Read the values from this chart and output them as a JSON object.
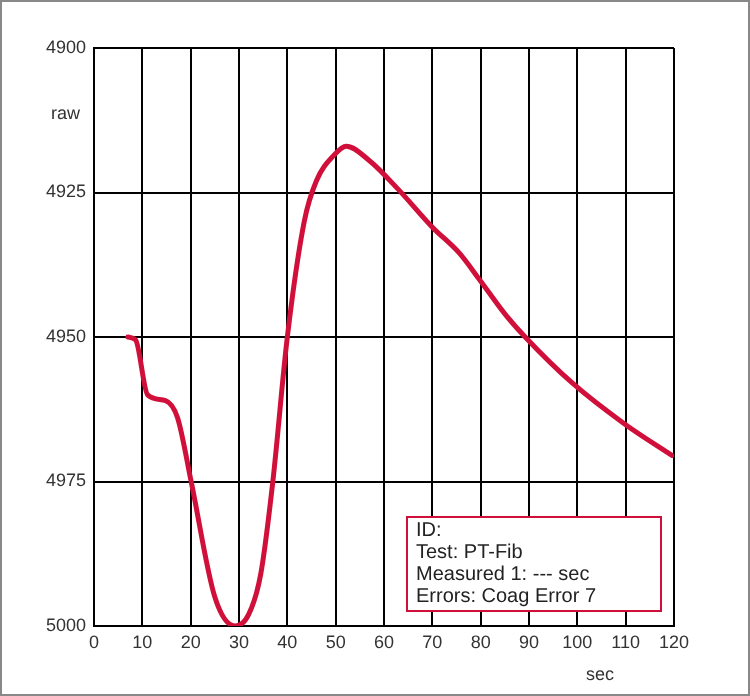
{
  "chart_data": {
    "type": "line",
    "xlabel": "sec",
    "ylabel": "raw",
    "series": [
      {
        "color": "#d0103a",
        "x": [
          7,
          8.6,
          11.1,
          14.8,
          17.3,
          20.1,
          25,
          29.2,
          32,
          34.5,
          37,
          40,
          43.5,
          46,
          49.7,
          52.2,
          57,
          63,
          70,
          75.6,
          79.7,
          85,
          89.2,
          99,
          109.7,
          119.6
        ],
        "values": [
          4950,
          4950.5,
          4960,
          4961,
          4964,
          4975,
          4995,
          5000,
          4998,
          4991,
          4975,
          4950,
          4930,
          4923,
          4918.5,
          4917,
          4919.5,
          4924.5,
          4931,
          4935.5,
          4940,
          4946,
          4950,
          4958,
          4965,
          4970.5
        ]
      }
    ],
    "xlim": [
      0,
      120
    ],
    "xticks": [
      0,
      10,
      20,
      30,
      40,
      50,
      60,
      70,
      80,
      90,
      100,
      110,
      120
    ],
    "ylim": [
      5000,
      4900
    ],
    "yticks": [
      4900,
      4925,
      4950,
      4975,
      5000
    ],
    "grid": true,
    "legend": false,
    "marker": "none",
    "line_style": "solid",
    "annotations": [
      "ID:",
      "Test: PT-Fib",
      "Measured 1: --- sec",
      "Errors: Coag Error 7"
    ]
  }
}
